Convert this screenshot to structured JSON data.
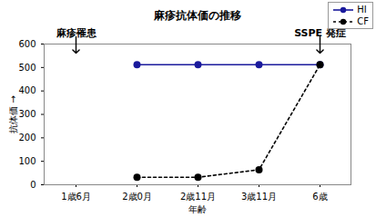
{
  "chart_data": {
    "type": "line",
    "title": "麻疹抗体価の推移",
    "x_label": "年齢",
    "y_label": "抗体価",
    "categories": [
      "1歳6月",
      "2歳0月",
      "2歳11月",
      "3歳11月",
      "6歳"
    ],
    "series": [
      {
        "name": "HI",
        "color": "#1a1a9c",
        "marker": "circle",
        "line_style": "solid",
        "values": [
          null,
          512,
          512,
          512,
          512
        ]
      },
      {
        "name": "CF",
        "color": "#000000",
        "marker": "circle",
        "line_style": "dashed",
        "values": [
          null,
          32,
          32,
          64,
          512
        ]
      }
    ],
    "ylim": [
      0,
      600
    ],
    "yticks": [
      0,
      100,
      200,
      300,
      400,
      500,
      600
    ],
    "grid": false,
    "legend": "top-right",
    "annotations": [
      {
        "text": "麻疹罹患",
        "category": "1歳6月"
      },
      {
        "text": "SSPE 発症",
        "category": "6歳"
      }
    ]
  }
}
